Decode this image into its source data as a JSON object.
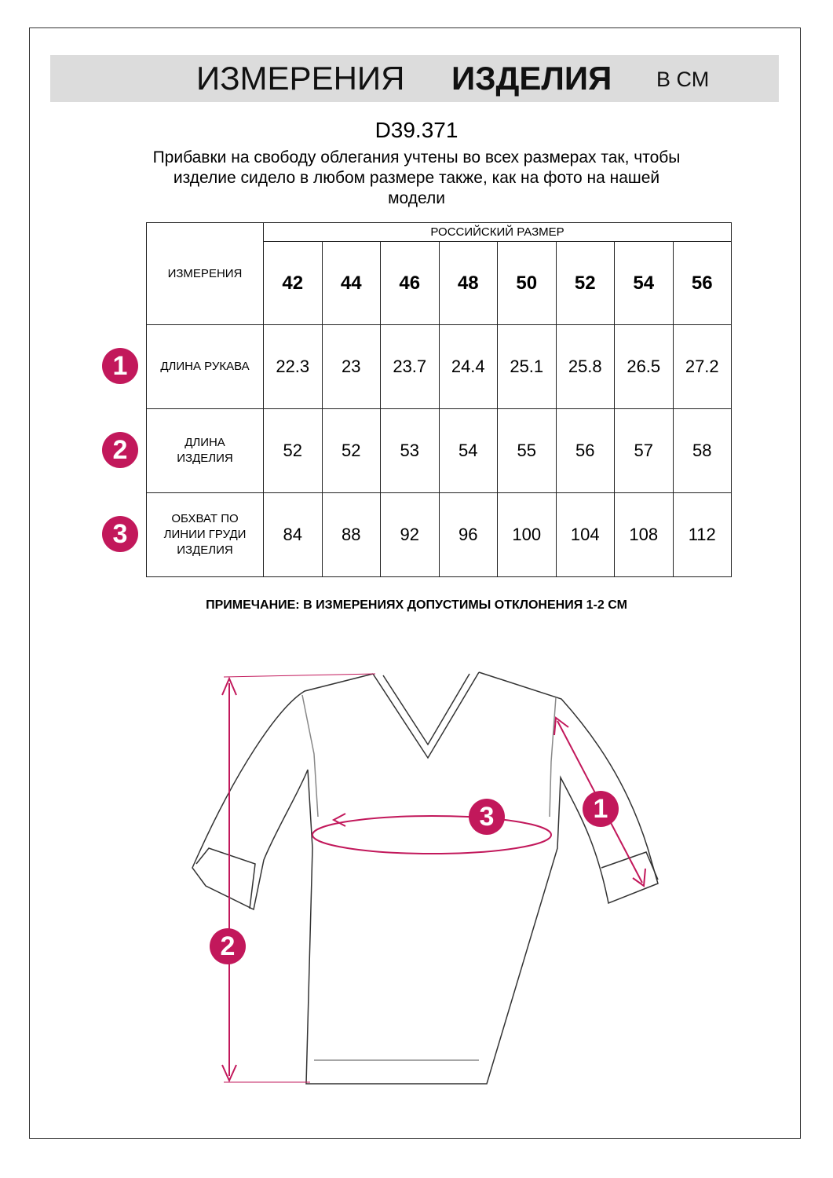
{
  "header": {
    "title_light": "ИЗМЕРЕНИЯ",
    "title_bold": "ИЗДЕЛИЯ",
    "unit": "В СМ"
  },
  "article": "D39.371",
  "description": [
    "Прибавки на свободу облегания учтены во всех размерах так, чтобы",
    "изделие сидело в любом размере также, как на фото на нашей",
    "модели"
  ],
  "table": {
    "corner": "ИЗМЕРЕНИЯ",
    "group_header": "РОССИЙСКИЙ РАЗМЕР",
    "sizes": [
      "42",
      "44",
      "46",
      "48",
      "50",
      "52",
      "54",
      "56"
    ],
    "rows": [
      {
        "marker": "1",
        "label": "ДЛИНА РУКАВА",
        "values": [
          22.3,
          23,
          23.7,
          24.4,
          25.1,
          25.8,
          26.5,
          27.2
        ]
      },
      {
        "marker": "2",
        "label": "ДЛИНА\nИЗДЕЛИЯ",
        "values": [
          52,
          52,
          53,
          54,
          55,
          56,
          57,
          58
        ]
      },
      {
        "marker": "3",
        "label": "ОБХВАТ ПО\nЛИНИИ ГРУДИ\nИЗДЕЛИЯ",
        "values": [
          84,
          88,
          92,
          96,
          100,
          104,
          108,
          112
        ]
      }
    ]
  },
  "note": "ПРИМЕЧАНИЕ: В ИЗМЕРЕНИЯХ ДОПУСТИМЫ ОТКЛОНЕНИЯ 1-2 СМ"
}
